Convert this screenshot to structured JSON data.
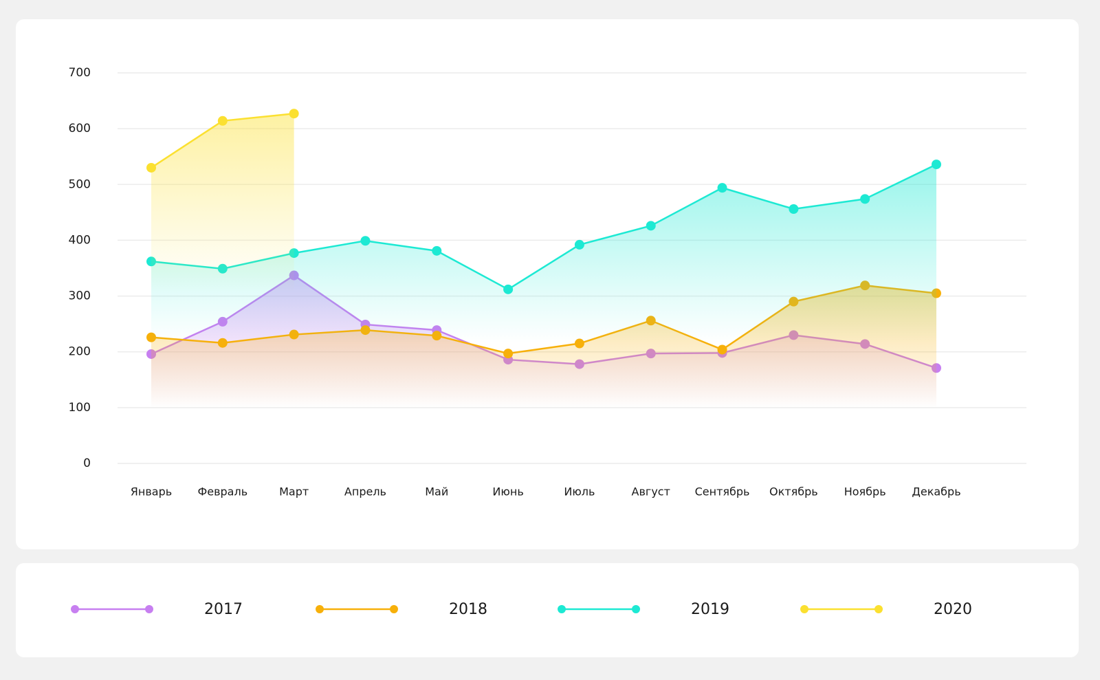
{
  "chart_data": {
    "type": "line",
    "categories": [
      "Январь",
      "Февраль",
      "Март",
      "Апрель",
      "Май",
      "Июнь",
      "Июль",
      "Август",
      "Сентябрь",
      "Октябрь",
      "Ноябрь",
      "Декабрь"
    ],
    "series": [
      {
        "name": "2017",
        "color": "#c77ff0",
        "values": [
          196,
          254,
          337,
          249,
          239,
          186,
          178,
          197,
          198,
          230,
          214,
          171
        ]
      },
      {
        "name": "2018",
        "color": "#f7b00a",
        "values": [
          226,
          216,
          231,
          239,
          229,
          197,
          215,
          256,
          204,
          290,
          319,
          305
        ]
      },
      {
        "name": "2019",
        "color": "#1de9d3",
        "values": [
          362,
          349,
          377,
          399,
          381,
          312,
          392,
          426,
          494,
          456,
          474,
          536
        ]
      },
      {
        "name": "2020",
        "color": "#fbe030",
        "values": [
          530,
          614,
          627,
          null,
          null,
          null,
          null,
          null,
          null,
          null,
          null,
          null
        ]
      }
    ],
    "ylim": [
      0,
      700
    ],
    "yticks": [
      0,
      100,
      200,
      300,
      400,
      500,
      600,
      700
    ],
    "grid": true,
    "legend": "bottom"
  }
}
